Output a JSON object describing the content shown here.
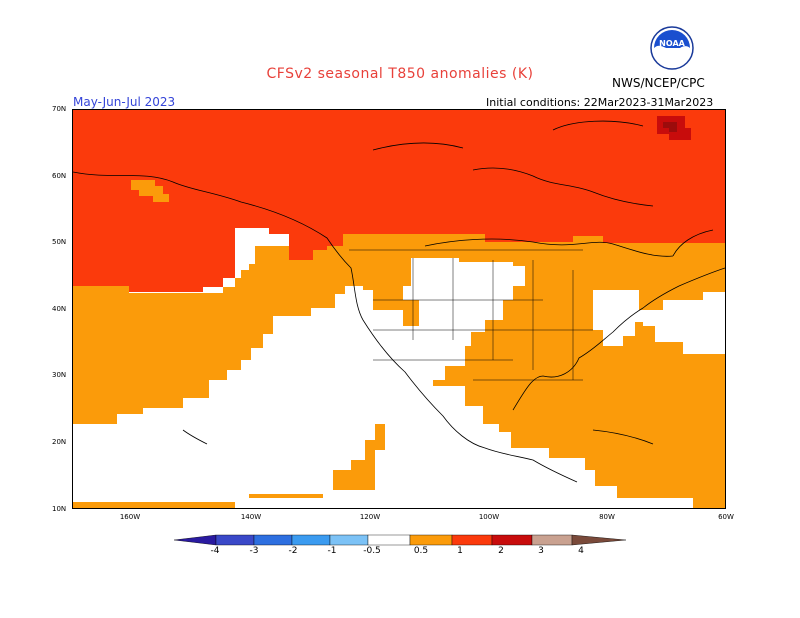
{
  "title": "CFSv2 seasonal T850 anomalies (K)",
  "agency": "NWS/NCEP/CPC",
  "season": "May-Jun-Jul 2023",
  "initial_conditions": "Initial conditions: 22Mar2023-31Mar2023",
  "logo_text": "NOAA",
  "map": {
    "lat_labels": [
      "70N",
      "60N",
      "50N",
      "40N",
      "30N",
      "20N",
      "10N"
    ],
    "lon_labels": [
      "160W",
      "140W",
      "120W",
      "100W",
      "80W",
      "60W"
    ]
  },
  "colorbar": {
    "ticks": [
      "-4",
      "-3",
      "-2",
      "-1",
      "-0.5",
      "0.5",
      "1",
      "2",
      "3",
      "4"
    ],
    "colors": [
      "#2a1aa0",
      "#3a48c8",
      "#2d6fe0",
      "#3b9bf0",
      "#7cc2f6",
      "#ffffff",
      "#fb9b0a",
      "#fb3a0c",
      "#c80c0c",
      "#9c0c0c",
      "#c9a190",
      "#7a4a3a"
    ]
  },
  "anomaly_colors": {
    "0.5-1": "#fb9b0a",
    "1-2": "#fb3a0c",
    "2-3": "#c80c0c",
    "3-4": "#9c0c0c"
  }
}
